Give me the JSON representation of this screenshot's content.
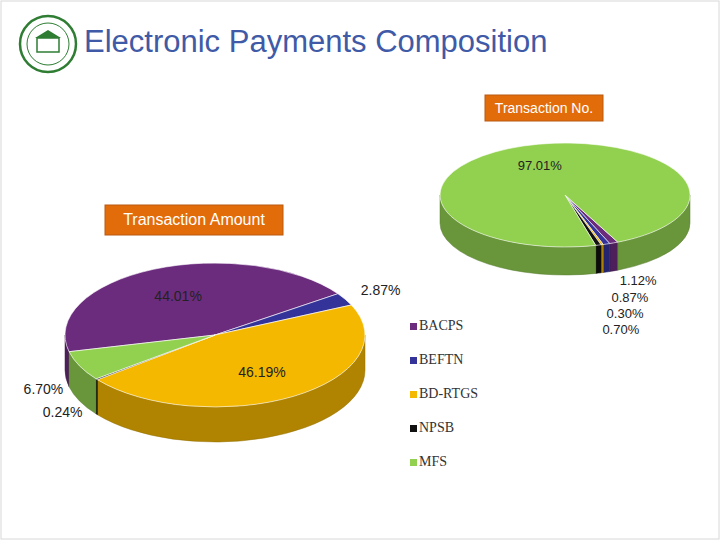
{
  "title": "Electronic Payments Composition",
  "chart_data": [
    {
      "type": "pie",
      "title": "Transaction Amount",
      "categories": [
        "BACPS",
        "BEFTN",
        "BD-RTGS",
        "NPSB",
        "MFS"
      ],
      "values": [
        44.01,
        2.87,
        46.19,
        0.24,
        6.7
      ],
      "value_labels": [
        "44.01%",
        "2.87%",
        "46.19%",
        "0.24%",
        "6.70%"
      ],
      "colors": [
        "#6b2c7e",
        "#33339a",
        "#f5b800",
        "#111111",
        "#92d050"
      ],
      "data_labels": true,
      "legend": "right"
    },
    {
      "type": "pie",
      "title": "Transaction No.",
      "categories": [
        "BACPS",
        "BEFTN",
        "BD-RTGS",
        "NPSB",
        "MFS"
      ],
      "values": [
        1.12,
        0.87,
        0.3,
        0.7,
        97.01
      ],
      "value_labels": [
        "1.12%",
        "0.87%",
        "0.30%",
        "0.70%",
        "97.01%"
      ],
      "colors": [
        "#6b2c7e",
        "#33339a",
        "#f5b800",
        "#111111",
        "#92d050"
      ],
      "data_labels": true
    }
  ]
}
